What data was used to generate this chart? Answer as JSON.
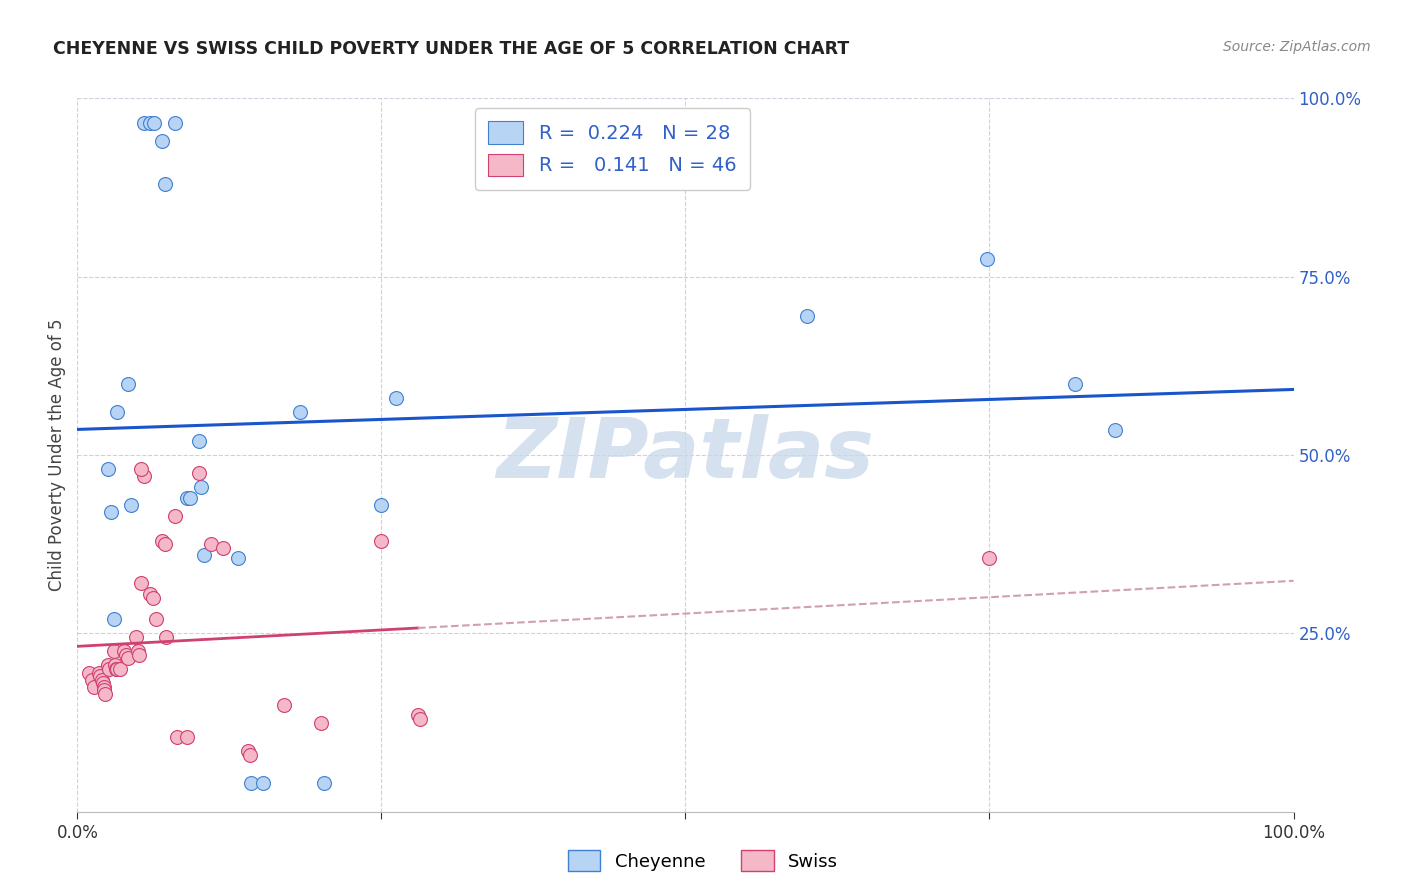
{
  "title": "CHEYENNE VS SWISS CHILD POVERTY UNDER THE AGE OF 5 CORRELATION CHART",
  "source": "Source: ZipAtlas.com",
  "ylabel": "Child Poverty Under the Age of 5",
  "xlim": [
    0,
    1
  ],
  "ylim": [
    0,
    1
  ],
  "legend_r_cheyenne": "0.224",
  "legend_n_cheyenne": "28",
  "legend_r_swiss": "0.141",
  "legend_n_swiss": "46",
  "cheyenne_face": "#b8d4f5",
  "swiss_face": "#f5b8c8",
  "cheyenne_edge": "#4080d0",
  "swiss_edge": "#d04070",
  "trend_blue": "#1a55cc",
  "trend_pink_solid": "#d04070",
  "trend_pink_dash": "#d0a0b0",
  "watermark_color": "#c8d8ea",
  "grid_color": "#d0d0dc",
  "bg_color": "#ffffff",
  "title_color": "#222222",
  "source_color": "#888888",
  "axis_blue": "#3060c8",
  "cheyenne_scatter": [
    [
      0.025,
      0.48
    ],
    [
      0.028,
      0.42
    ],
    [
      0.033,
      0.56
    ],
    [
      0.03,
      0.27
    ],
    [
      0.042,
      0.6
    ],
    [
      0.044,
      0.43
    ],
    [
      0.055,
      0.965
    ],
    [
      0.06,
      0.965
    ],
    [
      0.063,
      0.965
    ],
    [
      0.07,
      0.94
    ],
    [
      0.072,
      0.88
    ],
    [
      0.08,
      0.965
    ],
    [
      0.09,
      0.44
    ],
    [
      0.093,
      0.44
    ],
    [
      0.1,
      0.52
    ],
    [
      0.102,
      0.455
    ],
    [
      0.104,
      0.36
    ],
    [
      0.132,
      0.355
    ],
    [
      0.143,
      0.04
    ],
    [
      0.153,
      0.04
    ],
    [
      0.183,
      0.56
    ],
    [
      0.203,
      0.04
    ],
    [
      0.25,
      0.43
    ],
    [
      0.262,
      0.58
    ],
    [
      0.6,
      0.695
    ],
    [
      0.748,
      0.775
    ],
    [
      0.82,
      0.6
    ],
    [
      0.853,
      0.535
    ]
  ],
  "swiss_scatter": [
    [
      0.01,
      0.195
    ],
    [
      0.012,
      0.185
    ],
    [
      0.014,
      0.175
    ],
    [
      0.018,
      0.195
    ],
    [
      0.019,
      0.19
    ],
    [
      0.02,
      0.185
    ],
    [
      0.021,
      0.18
    ],
    [
      0.022,
      0.175
    ],
    [
      0.022,
      0.17
    ],
    [
      0.023,
      0.165
    ],
    [
      0.025,
      0.205
    ],
    [
      0.026,
      0.2
    ],
    [
      0.03,
      0.225
    ],
    [
      0.031,
      0.205
    ],
    [
      0.032,
      0.2
    ],
    [
      0.033,
      0.2
    ],
    [
      0.035,
      0.2
    ],
    [
      0.038,
      0.225
    ],
    [
      0.04,
      0.22
    ],
    [
      0.042,
      0.215
    ],
    [
      0.048,
      0.245
    ],
    [
      0.05,
      0.225
    ],
    [
      0.051,
      0.22
    ],
    [
      0.052,
      0.32
    ],
    [
      0.055,
      0.47
    ],
    [
      0.06,
      0.305
    ],
    [
      0.062,
      0.3
    ],
    [
      0.065,
      0.27
    ],
    [
      0.07,
      0.38
    ],
    [
      0.072,
      0.375
    ],
    [
      0.073,
      0.245
    ],
    [
      0.08,
      0.415
    ],
    [
      0.082,
      0.105
    ],
    [
      0.09,
      0.105
    ],
    [
      0.1,
      0.475
    ],
    [
      0.11,
      0.375
    ],
    [
      0.12,
      0.37
    ],
    [
      0.14,
      0.085
    ],
    [
      0.142,
      0.08
    ],
    [
      0.17,
      0.15
    ],
    [
      0.2,
      0.125
    ],
    [
      0.25,
      0.38
    ],
    [
      0.28,
      0.135
    ],
    [
      0.282,
      0.13
    ],
    [
      0.75,
      0.355
    ],
    [
      0.052,
      0.48
    ]
  ]
}
